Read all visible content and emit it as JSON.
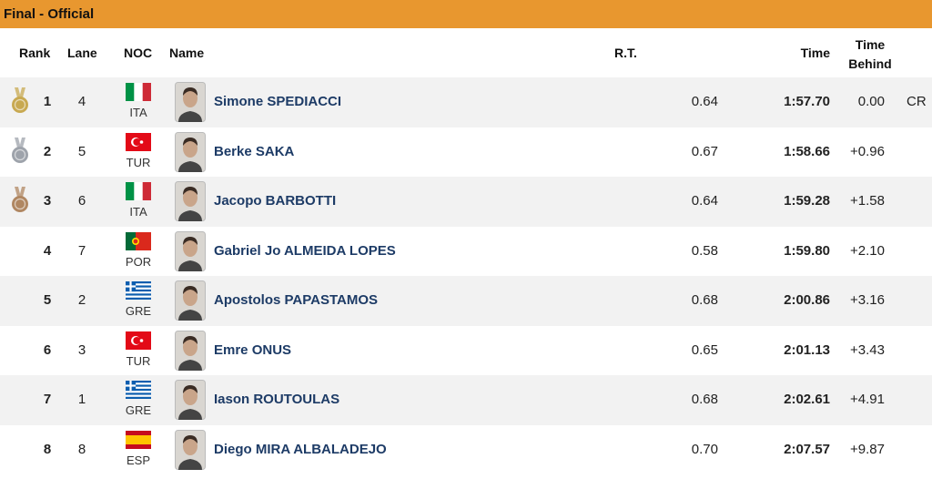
{
  "header": {
    "title": "Final  -  Official"
  },
  "table": {
    "columns": [
      "Rank",
      "Lane",
      "NOC",
      "Name",
      "R.T.",
      "Time",
      "Time Behind"
    ],
    "rows": [
      {
        "rank": "1",
        "lane": "4",
        "noc": "ITA",
        "name": "Simone SPEDIACCI",
        "rt": "0.64",
        "time": "1:57.70",
        "behind": "0.00",
        "record": "CR"
      },
      {
        "rank": "2",
        "lane": "5",
        "noc": "TUR",
        "name": "Berke SAKA",
        "rt": "0.67",
        "time": "1:58.66",
        "behind": "+0.96"
      },
      {
        "rank": "3",
        "lane": "6",
        "noc": "ITA",
        "name": "Jacopo BARBOTTI",
        "rt": "0.64",
        "time": "1:59.28",
        "behind": "+1.58"
      },
      {
        "rank": "4",
        "lane": "7",
        "noc": "POR",
        "name": "Gabriel Jo ALMEIDA LOPES",
        "rt": "0.58",
        "time": "1:59.80",
        "behind": "+2.10"
      },
      {
        "rank": "5",
        "lane": "2",
        "noc": "GRE",
        "name": "Apostolos PAPASTAMOS",
        "rt": "0.68",
        "time": "2:00.86",
        "behind": "+3.16"
      },
      {
        "rank": "6",
        "lane": "3",
        "noc": "TUR",
        "name": "Emre ONUS",
        "rt": "0.65",
        "time": "2:01.13",
        "behind": "+3.43"
      },
      {
        "rank": "7",
        "lane": "1",
        "noc": "GRE",
        "name": "Iason ROUTOULAS",
        "rt": "0.68",
        "time": "2:02.61",
        "behind": "+4.91"
      },
      {
        "rank": "8",
        "lane": "8",
        "noc": "ESP",
        "name": "Diego MIRA ALBALADEJO",
        "rt": "0.70",
        "time": "2:07.57",
        "behind": "+9.87"
      }
    ]
  }
}
